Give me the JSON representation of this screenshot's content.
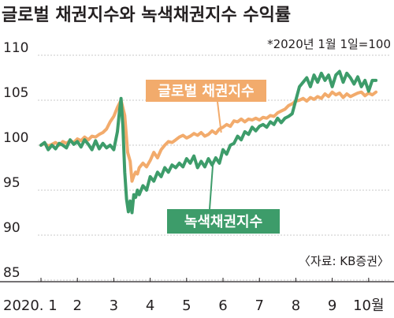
{
  "chart_data": {
    "type": "line",
    "title": "글로벌 채권지수와 녹색채권지수 수익률",
    "subtitle": "*2020년 1월 1일=100",
    "source": "〈자료: KB증권〉",
    "xlabel": "",
    "ylabel": "",
    "ylim": [
      85,
      110
    ],
    "yticks": [
      85,
      90,
      95,
      100,
      105,
      110
    ],
    "xlim": [
      1,
      10.35
    ],
    "xtick_values": [
      1,
      2,
      3,
      4,
      5,
      6,
      7,
      8,
      9,
      10
    ],
    "xtick_labels": [
      "2020. 1",
      "2",
      "3",
      "4",
      "5",
      "6",
      "7",
      "8",
      "9",
      "10월"
    ],
    "grid": true,
    "legend": "inline labels",
    "series": [
      {
        "name": "글로벌 채권지수",
        "color": "#f2ab6c",
        "x": [
          1.0,
          1.1,
          1.2,
          1.3,
          1.4,
          1.5,
          1.6,
          1.7,
          1.8,
          1.9,
          2.0,
          2.1,
          2.2,
          2.3,
          2.4,
          2.5,
          2.6,
          2.7,
          2.8,
          2.9,
          3.0,
          3.1,
          3.2,
          3.3,
          3.38,
          3.45,
          3.5,
          3.55,
          3.6,
          3.65,
          3.7,
          3.8,
          3.9,
          4.0,
          4.1,
          4.2,
          4.3,
          4.4,
          4.5,
          4.6,
          4.7,
          4.8,
          4.9,
          5.0,
          5.1,
          5.2,
          5.3,
          5.4,
          5.5,
          5.6,
          5.7,
          5.8,
          5.9,
          6.0,
          6.1,
          6.2,
          6.3,
          6.4,
          6.5,
          6.6,
          6.7,
          6.8,
          6.9,
          7.0,
          7.1,
          7.2,
          7.3,
          7.4,
          7.5,
          7.6,
          7.7,
          7.8,
          7.9,
          8.0,
          8.1,
          8.2,
          8.3,
          8.4,
          8.5,
          8.6,
          8.7,
          8.8,
          8.9,
          9.0,
          9.1,
          9.2,
          9.3,
          9.4,
          9.5,
          9.6,
          9.7,
          9.8,
          9.9,
          10.0,
          10.1,
          10.2
        ],
        "values": [
          100.0,
          100.2,
          99.9,
          100.1,
          100.3,
          100.0,
          100.4,
          100.2,
          100.5,
          100.3,
          100.7,
          100.5,
          100.9,
          100.6,
          101.0,
          100.9,
          101.2,
          101.4,
          101.8,
          102.6,
          103.2,
          104.2,
          105.0,
          103.3,
          99.2,
          98.2,
          96.0,
          96.6,
          97.0,
          96.8,
          97.5,
          98.0,
          97.6,
          98.3,
          99.2,
          98.6,
          99.5,
          100.0,
          100.4,
          100.3,
          100.6,
          100.9,
          101.1,
          100.8,
          101.0,
          101.3,
          101.1,
          101.4,
          101.0,
          101.2,
          101.6,
          101.3,
          101.8,
          102.0,
          102.3,
          102.1,
          102.7,
          102.6,
          102.9,
          102.6,
          102.9,
          102.8,
          103.0,
          102.8,
          103.1,
          103.0,
          103.3,
          103.2,
          103.6,
          103.8,
          104.0,
          104.4,
          104.6,
          104.9,
          105.0,
          105.2,
          104.9,
          105.3,
          105.1,
          105.4,
          105.2,
          105.7,
          105.4,
          105.9,
          105.6,
          105.8,
          105.3,
          105.7,
          105.4,
          105.6,
          105.8,
          105.9,
          105.5,
          105.8,
          105.6,
          105.9
        ]
      },
      {
        "name": "녹색채권지수",
        "color": "#3d9c6a",
        "x": [
          1.0,
          1.1,
          1.2,
          1.3,
          1.4,
          1.5,
          1.6,
          1.7,
          1.8,
          1.9,
          2.0,
          2.1,
          2.2,
          2.3,
          2.4,
          2.5,
          2.6,
          2.7,
          2.8,
          2.9,
          3.0,
          3.1,
          3.15,
          3.2,
          3.25,
          3.3,
          3.35,
          3.4,
          3.45,
          3.5,
          3.55,
          3.6,
          3.65,
          3.7,
          3.8,
          3.9,
          4.0,
          4.1,
          4.2,
          4.3,
          4.4,
          4.5,
          4.6,
          4.7,
          4.8,
          4.9,
          5.0,
          5.1,
          5.2,
          5.3,
          5.4,
          5.5,
          5.6,
          5.7,
          5.8,
          5.9,
          6.0,
          6.1,
          6.2,
          6.3,
          6.4,
          6.5,
          6.6,
          6.7,
          6.8,
          6.9,
          7.0,
          7.1,
          7.2,
          7.3,
          7.4,
          7.5,
          7.6,
          7.7,
          7.8,
          7.9,
          8.0,
          8.1,
          8.2,
          8.3,
          8.4,
          8.5,
          8.6,
          8.7,
          8.8,
          8.9,
          9.0,
          9.1,
          9.2,
          9.3,
          9.4,
          9.5,
          9.6,
          9.7,
          9.8,
          9.9,
          10.0,
          10.1,
          10.2
        ],
        "values": [
          100.0,
          100.3,
          99.5,
          100.0,
          99.6,
          100.2,
          100.0,
          99.7,
          100.6,
          100.1,
          100.4,
          99.8,
          100.6,
          100.1,
          99.5,
          100.5,
          99.6,
          100.2,
          99.7,
          100.0,
          99.5,
          101.5,
          103.5,
          105.2,
          102.0,
          97.0,
          94.0,
          92.6,
          93.8,
          92.5,
          94.5,
          94.2,
          95.0,
          94.5,
          95.5,
          95.0,
          96.5,
          96.0,
          97.0,
          96.5,
          97.5,
          97.0,
          97.8,
          97.5,
          98.0,
          97.6,
          98.5,
          98.0,
          98.8,
          97.5,
          98.2,
          97.6,
          98.5,
          97.8,
          98.6,
          98.0,
          99.5,
          99.0,
          100.0,
          100.2,
          101.0,
          100.6,
          101.5,
          101.2,
          102.0,
          101.6,
          102.1,
          102.3,
          102.0,
          102.6,
          102.3,
          103.0,
          102.5,
          103.0,
          103.2,
          103.5,
          105.0,
          106.5,
          107.0,
          107.5,
          106.5,
          107.8,
          107.0,
          108.0,
          107.2,
          107.8,
          106.5,
          107.8,
          108.2,
          107.0,
          108.0,
          107.5,
          106.8,
          107.6,
          106.5,
          107.2,
          106.0,
          107.2,
          107.2
        ]
      }
    ]
  }
}
